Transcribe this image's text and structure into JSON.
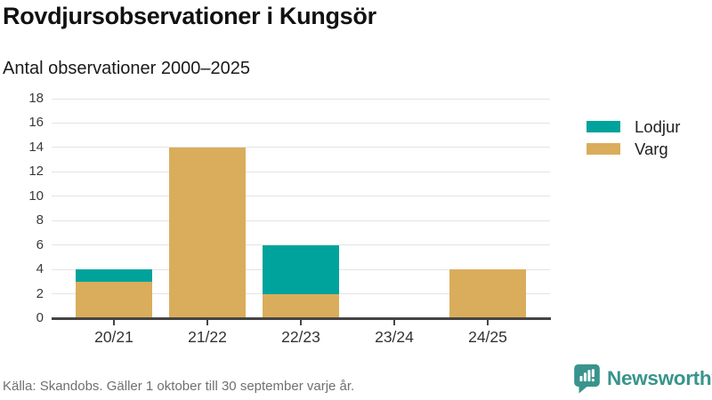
{
  "header": {
    "title": "Rovdjursobservationer i Kungsör",
    "subtitle": "Antal observationer 2000–2025"
  },
  "chart_data": {
    "type": "bar",
    "stacked": true,
    "title": "Rovdjursobservationer i Kungsör",
    "subtitle": "Antal observationer 2000–2025",
    "categories": [
      "20/21",
      "21/22",
      "22/23",
      "23/24",
      "24/25"
    ],
    "series": [
      {
        "name": "Varg",
        "color": "#d9ad5c",
        "values": [
          3,
          14,
          2,
          0,
          4
        ]
      },
      {
        "name": "Lodjur",
        "color": "#00a39b",
        "values": [
          1,
          0,
          4,
          0,
          0
        ]
      }
    ],
    "totals": [
      4,
      14,
      6,
      0,
      4
    ],
    "xlabel": "",
    "ylabel": "",
    "ylim": [
      0,
      18
    ],
    "yticks": [
      0,
      2,
      4,
      6,
      8,
      10,
      12,
      14,
      16,
      18
    ],
    "grid": true,
    "legend_position": "right",
    "legend": [
      {
        "label": "Lodjur",
        "color": "#00a39b"
      },
      {
        "label": "Varg",
        "color": "#d9ad5c"
      }
    ]
  },
  "footer": {
    "source": "Källa: Skandobs. Gäller 1 oktober till 30 september varje år.",
    "brand": "Newsworthy"
  },
  "colors": {
    "lodjur": "#00a39b",
    "varg": "#d9ad5c",
    "brand_teal": "#38948c",
    "gridline": "#e4e4e4",
    "axis": "#454545",
    "title_text": "#111111",
    "muted_text": "#707070"
  }
}
